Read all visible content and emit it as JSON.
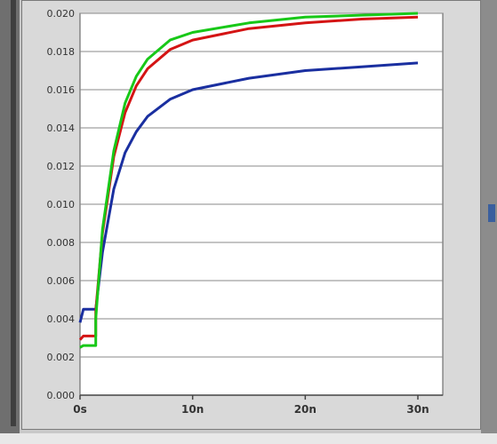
{
  "chart_data": {
    "type": "line",
    "title": "",
    "xlabel": "",
    "ylabel": "",
    "x_unit": "s",
    "xlim": [
      0,
      3.2e-08
    ],
    "ylim": [
      0,
      0.02
    ],
    "x_ticks": [
      0,
      1e-08,
      2e-08,
      3e-08
    ],
    "x_tick_labels": [
      "0s",
      "10n",
      "20n",
      "30n"
    ],
    "y_ticks": [
      0,
      0.002,
      0.004,
      0.006,
      0.008,
      0.01,
      0.012,
      0.014,
      0.016,
      0.018,
      0.02
    ],
    "y_tick_labels": [
      "0.000",
      "0.002",
      "0.004",
      "0.006",
      "0.008",
      "0.010",
      "0.012",
      "0.014",
      "0.016",
      "0.018",
      "0.020"
    ],
    "grid": true,
    "legend": "none",
    "series": [
      {
        "color": "#1a2fa0",
        "points": [
          [
            0,
            0.0038
          ],
          [
            3e-10,
            0.0045
          ],
          [
            1.4e-09,
            0.0045
          ],
          [
            2e-09,
            0.0075
          ],
          [
            3e-09,
            0.0108
          ],
          [
            4e-09,
            0.0127
          ],
          [
            5e-09,
            0.0138
          ],
          [
            6e-09,
            0.0146
          ],
          [
            8e-09,
            0.0155
          ],
          [
            1e-08,
            0.016
          ],
          [
            1.5e-08,
            0.0166
          ],
          [
            2e-08,
            0.017
          ],
          [
            2.5e-08,
            0.0172
          ],
          [
            3e-08,
            0.0174
          ]
        ]
      },
      {
        "color": "#d41414",
        "points": [
          [
            0,
            0.0029
          ],
          [
            3e-10,
            0.0031
          ],
          [
            1.4e-09,
            0.0031
          ],
          [
            1.4e-09,
            0.0044
          ],
          [
            2e-09,
            0.0085
          ],
          [
            3e-09,
            0.0125
          ],
          [
            4e-09,
            0.0148
          ],
          [
            5e-09,
            0.0162
          ],
          [
            6e-09,
            0.0171
          ],
          [
            8e-09,
            0.0181
          ],
          [
            1e-08,
            0.0186
          ],
          [
            1.5e-08,
            0.0192
          ],
          [
            2e-08,
            0.0195
          ],
          [
            2.5e-08,
            0.0197
          ],
          [
            3e-08,
            0.0198
          ]
        ]
      },
      {
        "color": "#18c818",
        "points": [
          [
            0,
            0.0025
          ],
          [
            3e-10,
            0.0026
          ],
          [
            1.4e-09,
            0.0026
          ],
          [
            1.4e-09,
            0.004
          ],
          [
            2e-09,
            0.0087
          ],
          [
            3e-09,
            0.0128
          ],
          [
            4e-09,
            0.0153
          ],
          [
            5e-09,
            0.0167
          ],
          [
            6e-09,
            0.0176
          ],
          [
            8e-09,
            0.0186
          ],
          [
            1e-08,
            0.019
          ],
          [
            1.5e-08,
            0.0195
          ],
          [
            2e-08,
            0.0198
          ],
          [
            2.5e-08,
            0.0199
          ],
          [
            3e-08,
            0.02
          ]
        ]
      }
    ]
  }
}
